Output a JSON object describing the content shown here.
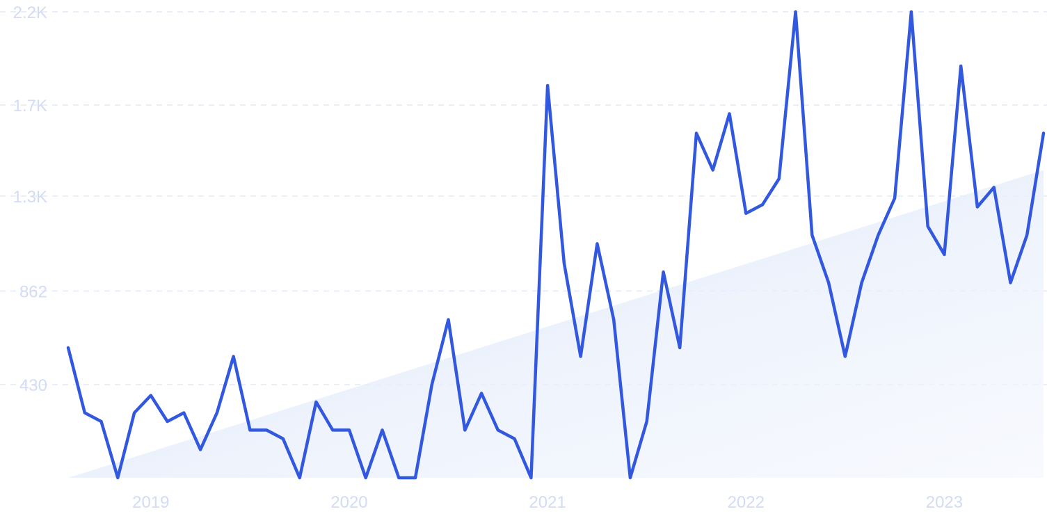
{
  "chart_data": {
    "type": "line",
    "title": "",
    "xlabel": "",
    "ylabel": "",
    "x_start": "2018-07",
    "y_ticks": [
      {
        "value": 0,
        "label": ""
      },
      {
        "value": 430,
        "label": "430"
      },
      {
        "value": 862,
        "label": "862"
      },
      {
        "value": 1300,
        "label": "1.3K"
      },
      {
        "value": 1720,
        "label": "1.7K"
      },
      {
        "value": 2150,
        "label": "2.2K"
      }
    ],
    "ylim": [
      0,
      2150
    ],
    "x_ticks": [
      {
        "label": "2019",
        "index": 5
      },
      {
        "label": "2020",
        "index": 17
      },
      {
        "label": "2021",
        "index": 29
      },
      {
        "label": "2022",
        "index": 41
      },
      {
        "label": "2023",
        "index": 53
      }
    ],
    "grid": "horizontal-dashed",
    "legend": "none",
    "series": [
      {
        "values": [
          600,
          300,
          260,
          0,
          300,
          380,
          260,
          300,
          130,
          300,
          560,
          220,
          220,
          180,
          0,
          350,
          220,
          220,
          0,
          220,
          0,
          0,
          430,
          730,
          220,
          390,
          220,
          180,
          0,
          1810,
          990,
          560,
          1080,
          730,
          0,
          260,
          950,
          600,
          1590,
          1420,
          1680,
          1220,
          1260,
          1380,
          2150,
          1120,
          900,
          560,
          900,
          1120,
          1290,
          2150,
          1160,
          1030,
          1900,
          1250,
          1340,
          900,
          1120,
          1590
        ],
        "color": "#3358e0"
      }
    ],
    "trend": {
      "type": "area",
      "start_value": 0,
      "end_value": 1420,
      "color": "#dce7fa"
    }
  }
}
